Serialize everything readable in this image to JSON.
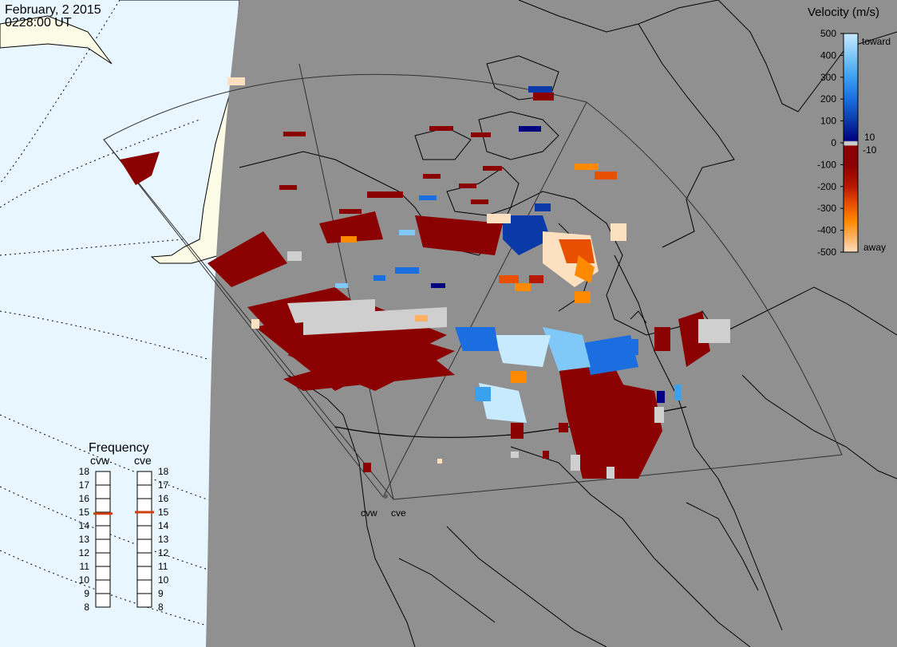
{
  "header": {
    "date": "February, 2 2015",
    "time": "0228:00 UT"
  },
  "colors": {
    "ocean": "#e8f6ff",
    "night": "#909090",
    "day_land": "#fcfbe6",
    "ground_scatter": "#cfcfcf",
    "velocity_scale": [
      "#fde0c0",
      "#ffb060",
      "#ff8a00",
      "#e85000",
      "#b81800",
      "#8b0000",
      "#cccccc",
      "#000080",
      "#0a3aa8",
      "#1a6ee0",
      "#3aa0f0",
      "#80c8f8",
      "#c8eaff"
    ]
  },
  "radars": {
    "west_label": "cvw",
    "east_label": "cve"
  },
  "legend": {
    "title": "Velocity (m/s)",
    "ticks": [
      "500",
      "400",
      "300",
      "200",
      "100",
      "0",
      "-100",
      "-200",
      "-300",
      "-400",
      "-500"
    ],
    "near_zero_pos": "10",
    "near_zero_neg": "-10",
    "toward_label": "toward",
    "away_label": "away",
    "values": [
      500,
      400,
      300,
      200,
      100,
      0,
      -100,
      -200,
      -300,
      -400,
      -500
    ]
  },
  "frequency": {
    "title": "Frequency",
    "left_label": "cvw",
    "right_label": "cve",
    "ticks": [
      "18",
      "17",
      "16",
      "15",
      "14",
      "13",
      "12",
      "11",
      "10",
      "9",
      "8"
    ],
    "cvw_value": 14.9,
    "cve_value": 15.0,
    "min": 8,
    "max": 18
  }
}
